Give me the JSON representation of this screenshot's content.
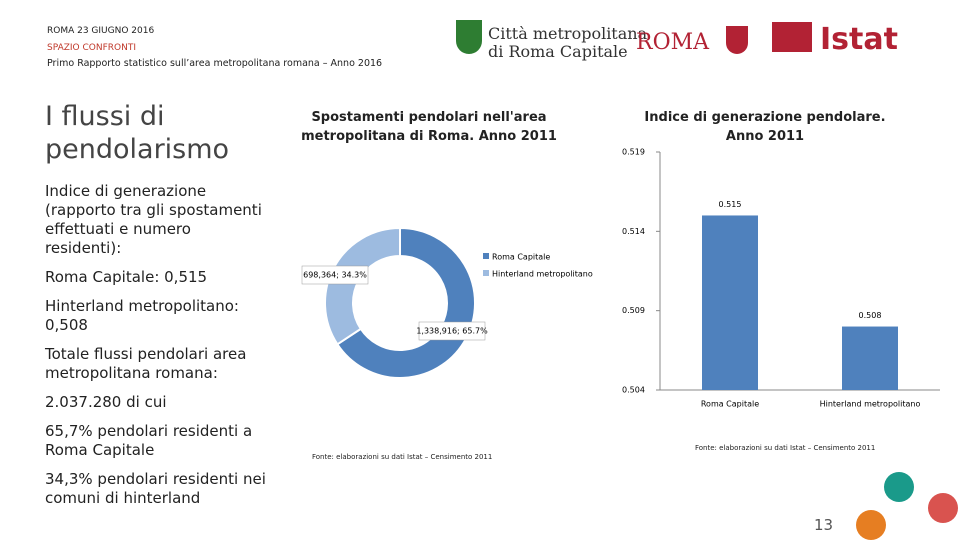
{
  "header": {
    "date": "ROMA 23 GIUGNO 2016",
    "section": "SPAZIO CONFRONTI",
    "report": "Primo Rapporto statistico sull’area metropolitana romana – Anno 2016",
    "logos": [
      "Città metropolitana",
      "di Roma Capitale",
      "ROMA",
      "Istat"
    ]
  },
  "left": {
    "title": "I flussi di pendolarismo",
    "items": [
      "Indice di generazione (rapporto tra gli spostamenti effettuati e numero residenti):",
      "Roma Capitale: 0,515",
      "Hinterland metropolitano: 0,508",
      "Totale flussi pendolari area metropolitana romana:",
      "2.037.280 di cui",
      "65,7% pendolari residenti a Roma Capitale",
      "34,3% pendolari residenti nei comuni di hinterland"
    ]
  },
  "chart_data": [
    {
      "type": "pie",
      "title": "Spostamenti pendolari nell'area metropolitana di Roma. Anno 2011",
      "categories": [
        "Roma Capitale",
        "Hinterland metropolitano"
      ],
      "values": [
        1338916,
        698364
      ],
      "value_labels": [
        "1,338,916; 65.7%",
        "698,364; 34.3%"
      ],
      "colors": [
        "#4f81bd",
        "#9dbbe0"
      ],
      "source": "Fonte: elaborazioni su dati Istat – Censimento 2011"
    },
    {
      "type": "bar",
      "title": "Indice di generazione pendolare. Anno 2011",
      "categories": [
        "Roma Capitale",
        "Hinterland metropolitano"
      ],
      "values": [
        0.515,
        0.508
      ],
      "color": "#4f81bd",
      "ylim": [
        0.504,
        0.519
      ],
      "yticks": [
        0.504,
        0.509,
        0.514,
        0.519
      ],
      "source": "Fonte: elaborazioni su dati Istat – Censimento 2011"
    }
  ],
  "footer": {
    "page": "13"
  }
}
